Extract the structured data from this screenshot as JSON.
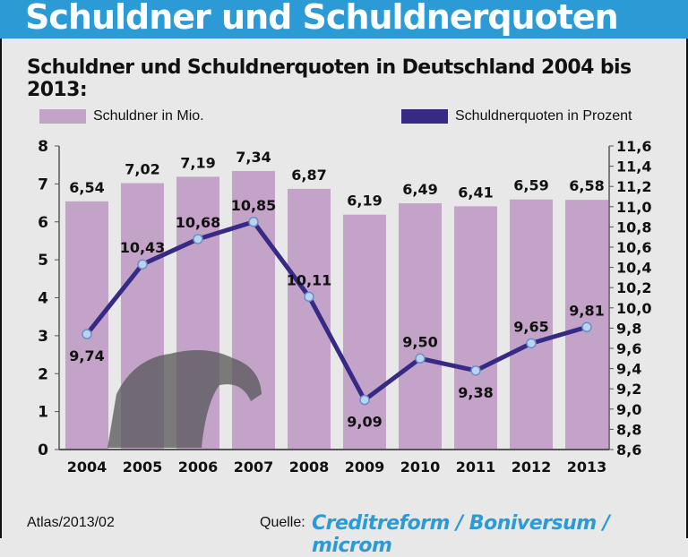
{
  "header": {
    "title": "Schuldner und Schuldnerquoten"
  },
  "subtitle": "Schuldner und Schuldnerquoten in Deutschland 2004 bis 2013:",
  "footer": {
    "atlas": "Atlas/2013/02",
    "source_label": "Quelle:",
    "source": "Creditreform / Boniversum / microm"
  },
  "chart_data": {
    "type": "bar+line",
    "title": "Schuldner und Schuldnerquoten in Deutschland 2004 bis 2013:",
    "categories": [
      "2004",
      "2005",
      "2006",
      "2007",
      "2008",
      "2009",
      "2010",
      "2011",
      "2012",
      "2013"
    ],
    "series": [
      {
        "name": "Schuldner in Mio.",
        "type": "bar",
        "axis": "left",
        "color": "#c4a3c9",
        "values": [
          6.54,
          7.02,
          7.19,
          7.34,
          6.87,
          6.19,
          6.49,
          6.41,
          6.59,
          6.58
        ],
        "labels": [
          "6,54",
          "7,02",
          "7,19",
          "7,34",
          "6,87",
          "6,19",
          "6,49",
          "6,41",
          "6,59",
          "6,58"
        ]
      },
      {
        "name": "Schuldnerquoten in Prozent",
        "type": "line",
        "axis": "right",
        "color": "#362a84",
        "values": [
          9.74,
          10.43,
          10.68,
          10.85,
          10.11,
          9.09,
          9.5,
          9.38,
          9.65,
          9.81
        ],
        "labels": [
          "9,74",
          "10,43",
          "10,68",
          "10,85",
          "10,11",
          "9,09",
          "9,50",
          "9,38",
          "9,65",
          "9,81"
        ]
      }
    ],
    "y_left": {
      "range": [
        0,
        8
      ],
      "ticks": [
        "0",
        "1",
        "2",
        "3",
        "4",
        "5",
        "6",
        "7",
        "8"
      ]
    },
    "y_right": {
      "range": [
        8.6,
        11.6
      ],
      "ticks": [
        "8,6",
        "8,8",
        "9,0",
        "9,2",
        "9,4",
        "9,6",
        "9,8",
        "10,0",
        "10,2",
        "10,4",
        "10,6",
        "10,8",
        "11,0",
        "11,2",
        "11,4",
        "11,6"
      ]
    },
    "legend": "top"
  }
}
